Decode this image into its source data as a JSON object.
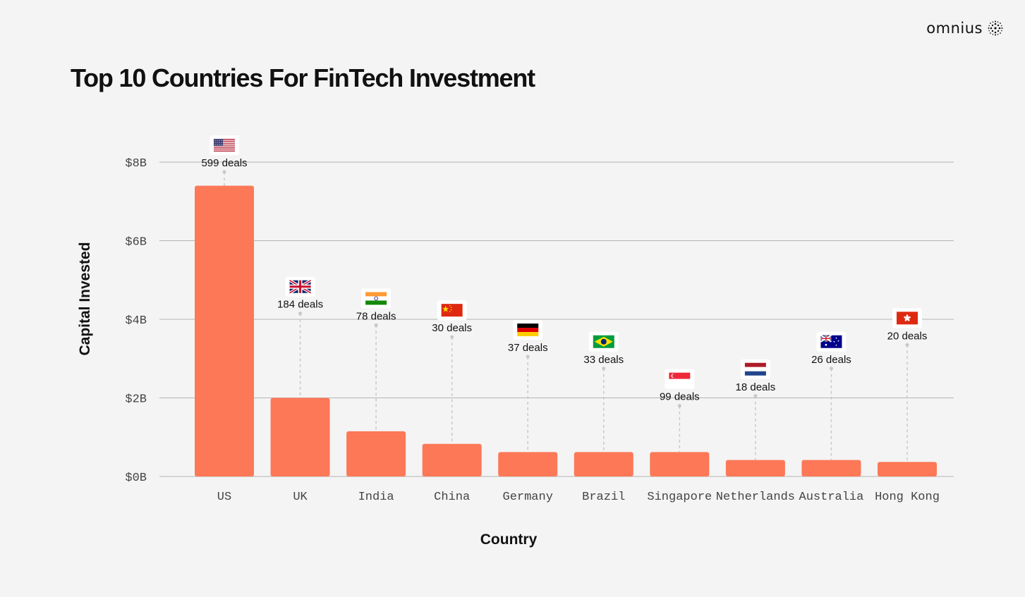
{
  "brand": {
    "name": "omnius",
    "logo_icon": "dotted-sphere-icon"
  },
  "colors": {
    "bar": "#fd7857",
    "grid": "#b4b4b4",
    "leader": "#c8c8c8",
    "background": "#f4f4f4"
  },
  "chart_data": {
    "type": "bar",
    "title": "Top 10 Countries For FinTech Investment",
    "xlabel": "Country",
    "ylabel": "Capital Invested",
    "ylim": [
      0,
      8
    ],
    "yticks": [
      {
        "value": 0,
        "label": "$0B"
      },
      {
        "value": 2,
        "label": "$2B"
      },
      {
        "value": 4,
        "label": "$4B"
      },
      {
        "value": 6,
        "label": "$6B"
      },
      {
        "value": 8,
        "label": "$8B"
      }
    ],
    "grid": true,
    "categories": [
      "US",
      "UK",
      "India",
      "China",
      "Germany",
      "Brazil",
      "Singapore",
      "Netherlands",
      "Australia",
      "Hong Kong"
    ],
    "values": [
      7.4,
      2.0,
      1.15,
      0.83,
      0.62,
      0.62,
      0.62,
      0.42,
      0.42,
      0.37
    ],
    "value_unit": "billion USD",
    "annotations": [
      {
        "category": "US",
        "label": "599 deals",
        "flag": "us-flag-icon",
        "level": 8.0
      },
      {
        "category": "UK",
        "label": "184 deals",
        "flag": "uk-flag-icon",
        "level": 4.4
      },
      {
        "category": "India",
        "label": "78 deals",
        "flag": "india-flag-icon",
        "level": 4.1
      },
      {
        "category": "China",
        "label": "30 deals",
        "flag": "china-flag-icon",
        "level": 3.8
      },
      {
        "category": "Germany",
        "label": "37 deals",
        "flag": "germany-flag-icon",
        "level": 3.3
      },
      {
        "category": "Brazil",
        "label": "33 deals",
        "flag": "brazil-flag-icon",
        "level": 3.0
      },
      {
        "category": "Singapore",
        "label": "99 deals",
        "flag": "singapore-flag-icon",
        "level": 2.05
      },
      {
        "category": "Netherlands",
        "label": "18 deals",
        "flag": "netherlands-flag-icon",
        "level": 2.3
      },
      {
        "category": "Australia",
        "label": "26 deals",
        "flag": "australia-flag-icon",
        "level": 3.0
      },
      {
        "category": "Hong Kong",
        "label": "20 deals",
        "flag": "hongkong-flag-icon",
        "level": 3.6
      }
    ]
  }
}
